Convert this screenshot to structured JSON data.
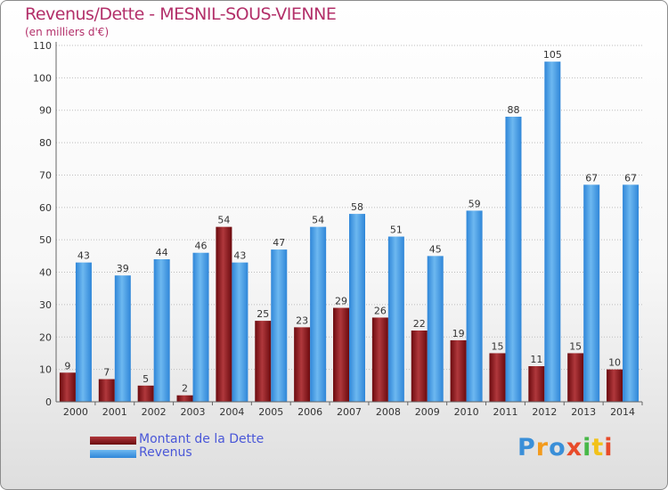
{
  "header": {
    "title": "Revenus/Dette - MESNIL-SOUS-VIENNE",
    "subtitle": "(en milliers d'€)"
  },
  "legend": {
    "dette_label": "Montant de la Dette",
    "revenus_label": "Revenus"
  },
  "brand": {
    "logo_letters": [
      "P",
      "r",
      "o",
      "x",
      "i",
      "t",
      "i"
    ],
    "logo_colors": [
      "#3a8fd8",
      "#f39b1d",
      "#3a8fd8",
      "#e84b2a",
      "#48b848",
      "#f2c21a",
      "#e84b2a"
    ]
  },
  "colors": {
    "dette": "#6b0a0e",
    "dette_light": "#b0383c",
    "revenus": "#2f86d8",
    "revenus_light": "#6db8f0",
    "axis_text": "#333333",
    "grid": "#bdbdbd"
  },
  "chart_data": {
    "type": "bar",
    "title": "Revenus/Dette - MESNIL-SOUS-VIENNE",
    "subtitle": "(en milliers d'€)",
    "categories": [
      "2000",
      "2001",
      "2002",
      "2003",
      "2004",
      "2005",
      "2006",
      "2007",
      "2008",
      "2009",
      "2010",
      "2011",
      "2012",
      "2013",
      "2014"
    ],
    "series": [
      {
        "name": "Montant de la Dette",
        "values": [
          9,
          7,
          5,
          2,
          54,
          25,
          23,
          29,
          26,
          22,
          19,
          15,
          11,
          15,
          10
        ]
      },
      {
        "name": "Revenus",
        "values": [
          43,
          39,
          44,
          46,
          43,
          47,
          54,
          58,
          51,
          45,
          59,
          88,
          105,
          67,
          67
        ]
      }
    ],
    "ylim": [
      0,
      110
    ],
    "yticks": [
      0,
      10,
      20,
      30,
      40,
      50,
      60,
      70,
      80,
      90,
      100,
      110
    ],
    "grid": true,
    "legend_position": "bottom-left",
    "xlabel": "",
    "ylabel": ""
  }
}
